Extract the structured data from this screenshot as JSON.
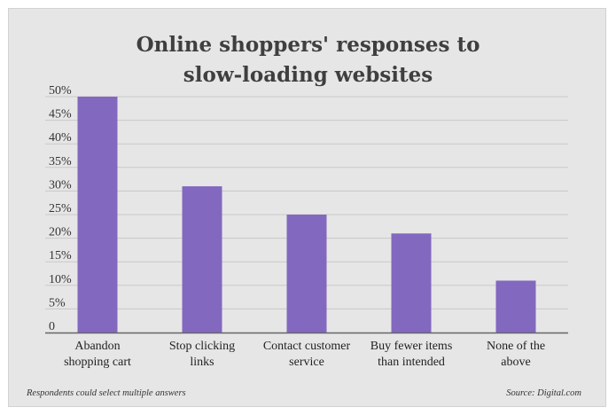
{
  "chart_data": {
    "type": "bar",
    "title_lines": [
      "Online shoppers' responses to",
      "slow-loading websites"
    ],
    "categories": [
      [
        "Abandon",
        "shopping cart"
      ],
      [
        "Stop clicking",
        "links"
      ],
      [
        "Contact customer",
        "service"
      ],
      [
        "Buy fewer items",
        "than intended"
      ],
      [
        "None of the",
        "above"
      ]
    ],
    "values": [
      50,
      31,
      25,
      21,
      11
    ],
    "ylim": [
      0,
      50
    ],
    "y_ticks": [
      {
        "value": 0,
        "label": "0"
      },
      {
        "value": 5,
        "label": "5%"
      },
      {
        "value": 10,
        "label": "10%"
      },
      {
        "value": 15,
        "label": "15%"
      },
      {
        "value": 20,
        "label": "20%"
      },
      {
        "value": 25,
        "label": "25%"
      },
      {
        "value": 30,
        "label": "30%"
      },
      {
        "value": 35,
        "label": "35%"
      },
      {
        "value": 40,
        "label": "40%"
      },
      {
        "value": 45,
        "label": "45%"
      },
      {
        "value": 50,
        "label": "50%"
      }
    ],
    "grid": true,
    "bar_color": "#8268bf",
    "gridline_color": "#c9c9c9",
    "axis_color": "#666666"
  },
  "footer": {
    "note": "Respondents could select multiple answers",
    "source": "Source: Digital.com"
  }
}
